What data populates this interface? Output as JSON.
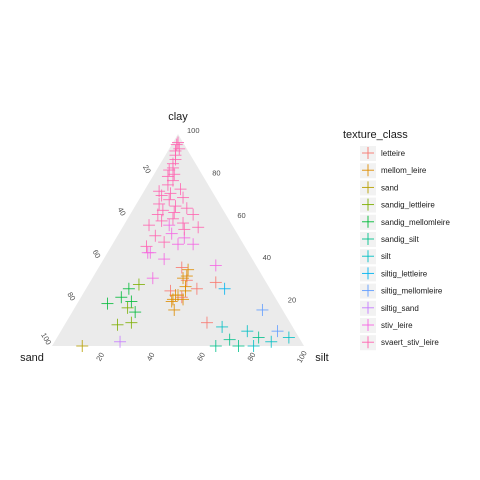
{
  "chart_data": {
    "type": "scatter",
    "subtype": "ternary",
    "axes": {
      "top": "clay",
      "left": "sand",
      "right": "silt"
    },
    "ticks": {
      "clay": [
        "100",
        "80",
        "60",
        "40",
        "20"
      ],
      "sand": [
        "20",
        "40",
        "60",
        "80",
        "100"
      ],
      "silt": [
        "20",
        "40",
        "60",
        "80",
        "100"
      ]
    },
    "panel_fill": "#EBEBEB",
    "grid": false,
    "legend": {
      "title": "texture_class",
      "position": "right",
      "marker": "cross"
    },
    "series": [
      {
        "name": "letteire",
        "color": "#F8766D",
        "points": [
          {
            "clay": 37,
            "sand": 30,
            "silt": 33
          },
          {
            "clay": 23,
            "sand": 37,
            "silt": 40
          },
          {
            "clay": 30,
            "sand": 20,
            "silt": 50
          },
          {
            "clay": 27,
            "sand": 29,
            "silt": 44
          },
          {
            "clay": 31,
            "sand": 31,
            "silt": 38
          },
          {
            "clay": 26,
            "sand": 40,
            "silt": 34
          },
          {
            "clay": 11,
            "sand": 33,
            "silt": 56
          }
        ]
      },
      {
        "name": "mellom_leire",
        "color": "#DE8C00",
        "points": [
          {
            "clay": 21,
            "sand": 42,
            "silt": 37
          },
          {
            "clay": 26,
            "sand": 34,
            "silt": 40
          },
          {
            "clay": 32,
            "sand": 32,
            "silt": 36
          },
          {
            "clay": 22,
            "sand": 41,
            "silt": 37
          },
          {
            "clay": 28,
            "sand": 33,
            "silt": 39
          },
          {
            "clay": 22,
            "sand": 37,
            "silt": 41
          },
          {
            "clay": 24,
            "sand": 39,
            "silt": 37
          },
          {
            "clay": 36,
            "sand": 28,
            "silt": 36
          },
          {
            "clay": 33,
            "sand": 30,
            "silt": 37
          },
          {
            "clay": 17,
            "sand": 43,
            "silt": 40
          },
          {
            "clay": 24,
            "sand": 38,
            "silt": 38
          }
        ]
      },
      {
        "name": "sand",
        "color": "#B79F00",
        "points": [
          {
            "clay": 0,
            "sand": 88,
            "silt": 12
          }
        ]
      },
      {
        "name": "sandig_lettleire",
        "color": "#7CAE00",
        "points": [
          {
            "clay": 18,
            "sand": 61,
            "silt": 21
          },
          {
            "clay": 10,
            "sand": 69,
            "silt": 21
          },
          {
            "clay": 11,
            "sand": 63,
            "silt": 26
          },
          {
            "clay": 29,
            "sand": 51,
            "silt": 20
          }
        ]
      },
      {
        "name": "sandig_mellomleire",
        "color": "#00BA38",
        "points": [
          {
            "clay": 21,
            "sand": 58,
            "silt": 21
          },
          {
            "clay": 27,
            "sand": 56,
            "silt": 17
          },
          {
            "clay": 23,
            "sand": 61,
            "silt": 16
          },
          {
            "clay": 16,
            "sand": 59,
            "silt": 25
          },
          {
            "clay": 20,
            "sand": 68,
            "silt": 12
          }
        ]
      },
      {
        "name": "sandig_silt",
        "color": "#00C08B",
        "points": [
          {
            "clay": 0,
            "sand": 26,
            "silt": 74
          },
          {
            "clay": 4,
            "sand": 16,
            "silt": 80
          },
          {
            "clay": 3,
            "sand": 28,
            "silt": 69
          },
          {
            "clay": 0,
            "sand": 35,
            "silt": 65
          }
        ]
      },
      {
        "name": "silt",
        "color": "#00BFC4",
        "points": [
          {
            "clay": 7,
            "sand": 19,
            "silt": 74
          },
          {
            "clay": 0,
            "sand": 20,
            "silt": 80
          },
          {
            "clay": 2,
            "sand": 12,
            "silt": 86
          },
          {
            "clay": 4,
            "sand": 4,
            "silt": 92
          },
          {
            "clay": 9,
            "sand": 28,
            "silt": 63
          }
        ]
      },
      {
        "name": "siltig_lettleire",
        "color": "#00B4F0",
        "points": [
          {
            "clay": 27,
            "sand": 18,
            "silt": 55
          }
        ]
      },
      {
        "name": "siltig_mellomleire",
        "color": "#619CFF",
        "points": [
          {
            "clay": 17,
            "sand": 8,
            "silt": 75
          },
          {
            "clay": 7,
            "sand": 7,
            "silt": 86
          }
        ]
      },
      {
        "name": "siltig_sand",
        "color": "#C77CFF",
        "points": [
          {
            "clay": 2,
            "sand": 72,
            "silt": 26
          }
        ]
      },
      {
        "name": "stiv_leire",
        "color": "#F564E3",
        "points": [
          {
            "clay": 57,
            "sand": 25,
            "silt": 18
          },
          {
            "clay": 51,
            "sand": 22,
            "silt": 27
          },
          {
            "clay": 48,
            "sand": 26,
            "silt": 26
          },
          {
            "clay": 41,
            "sand": 35,
            "silt": 24
          },
          {
            "clay": 44,
            "sand": 40,
            "silt": 16
          },
          {
            "clay": 32,
            "sand": 44,
            "silt": 24
          },
          {
            "clay": 48,
            "sand": 20,
            "silt": 32
          },
          {
            "clay": 38,
            "sand": 16,
            "silt": 46
          },
          {
            "clay": 44,
            "sand": 39,
            "silt": 17
          },
          {
            "clay": 53,
            "sand": 26,
            "silt": 21
          }
        ]
      },
      {
        "name": "svaert_stiv_leire",
        "color": "#FF64B0",
        "points": [
          {
            "clay": 96,
            "sand": 2,
            "silt": 2
          },
          {
            "clay": 95,
            "sand": 3,
            "silt": 2
          },
          {
            "clay": 92,
            "sand": 5,
            "silt": 3
          },
          {
            "clay": 93,
            "sand": 3,
            "silt": 4
          },
          {
            "clay": 90,
            "sand": 6,
            "silt": 4
          },
          {
            "clay": 88,
            "sand": 7,
            "silt": 5
          },
          {
            "clay": 86,
            "sand": 9,
            "silt": 5
          },
          {
            "clay": 84,
            "sand": 10,
            "silt": 6
          },
          {
            "clay": 81,
            "sand": 11,
            "silt": 8
          },
          {
            "clay": 78,
            "sand": 13,
            "silt": 9
          },
          {
            "clay": 76,
            "sand": 16,
            "silt": 8
          },
          {
            "clay": 74,
            "sand": 12,
            "silt": 14
          },
          {
            "clay": 73,
            "sand": 21,
            "silt": 6
          },
          {
            "clay": 71,
            "sand": 21,
            "silt": 8
          },
          {
            "clay": 70,
            "sand": 13,
            "silt": 17
          },
          {
            "clay": 69,
            "sand": 19,
            "silt": 12
          },
          {
            "clay": 66,
            "sand": 18,
            "silt": 16
          },
          {
            "clay": 65,
            "sand": 14,
            "silt": 21
          },
          {
            "clay": 63,
            "sand": 20,
            "silt": 17
          },
          {
            "clay": 62,
            "sand": 27,
            "silt": 11
          },
          {
            "clay": 60,
            "sand": 22,
            "silt": 18
          },
          {
            "clay": 58,
            "sand": 19,
            "silt": 23
          },
          {
            "clay": 57,
            "sand": 33,
            "silt": 10
          },
          {
            "clay": 56,
            "sand": 14,
            "silt": 30
          },
          {
            "clay": 55,
            "sand": 20,
            "silt": 25
          },
          {
            "clay": 52,
            "sand": 33,
            "silt": 15
          },
          {
            "clay": 49,
            "sand": 31,
            "silt": 20
          },
          {
            "clay": 47,
            "sand": 39,
            "silt": 14
          },
          {
            "clay": 62,
            "sand": 13,
            "silt": 25
          },
          {
            "clay": 67,
            "sand": 24,
            "silt": 9
          },
          {
            "clay": 80,
            "sand": 14,
            "silt": 6
          },
          {
            "clay": 83,
            "sand": 12,
            "silt": 5
          },
          {
            "clay": 72,
            "sand": 17,
            "silt": 11
          },
          {
            "clay": 64,
            "sand": 24,
            "silt": 12
          },
          {
            "clay": 59,
            "sand": 27,
            "silt": 14
          }
        ]
      }
    ]
  }
}
